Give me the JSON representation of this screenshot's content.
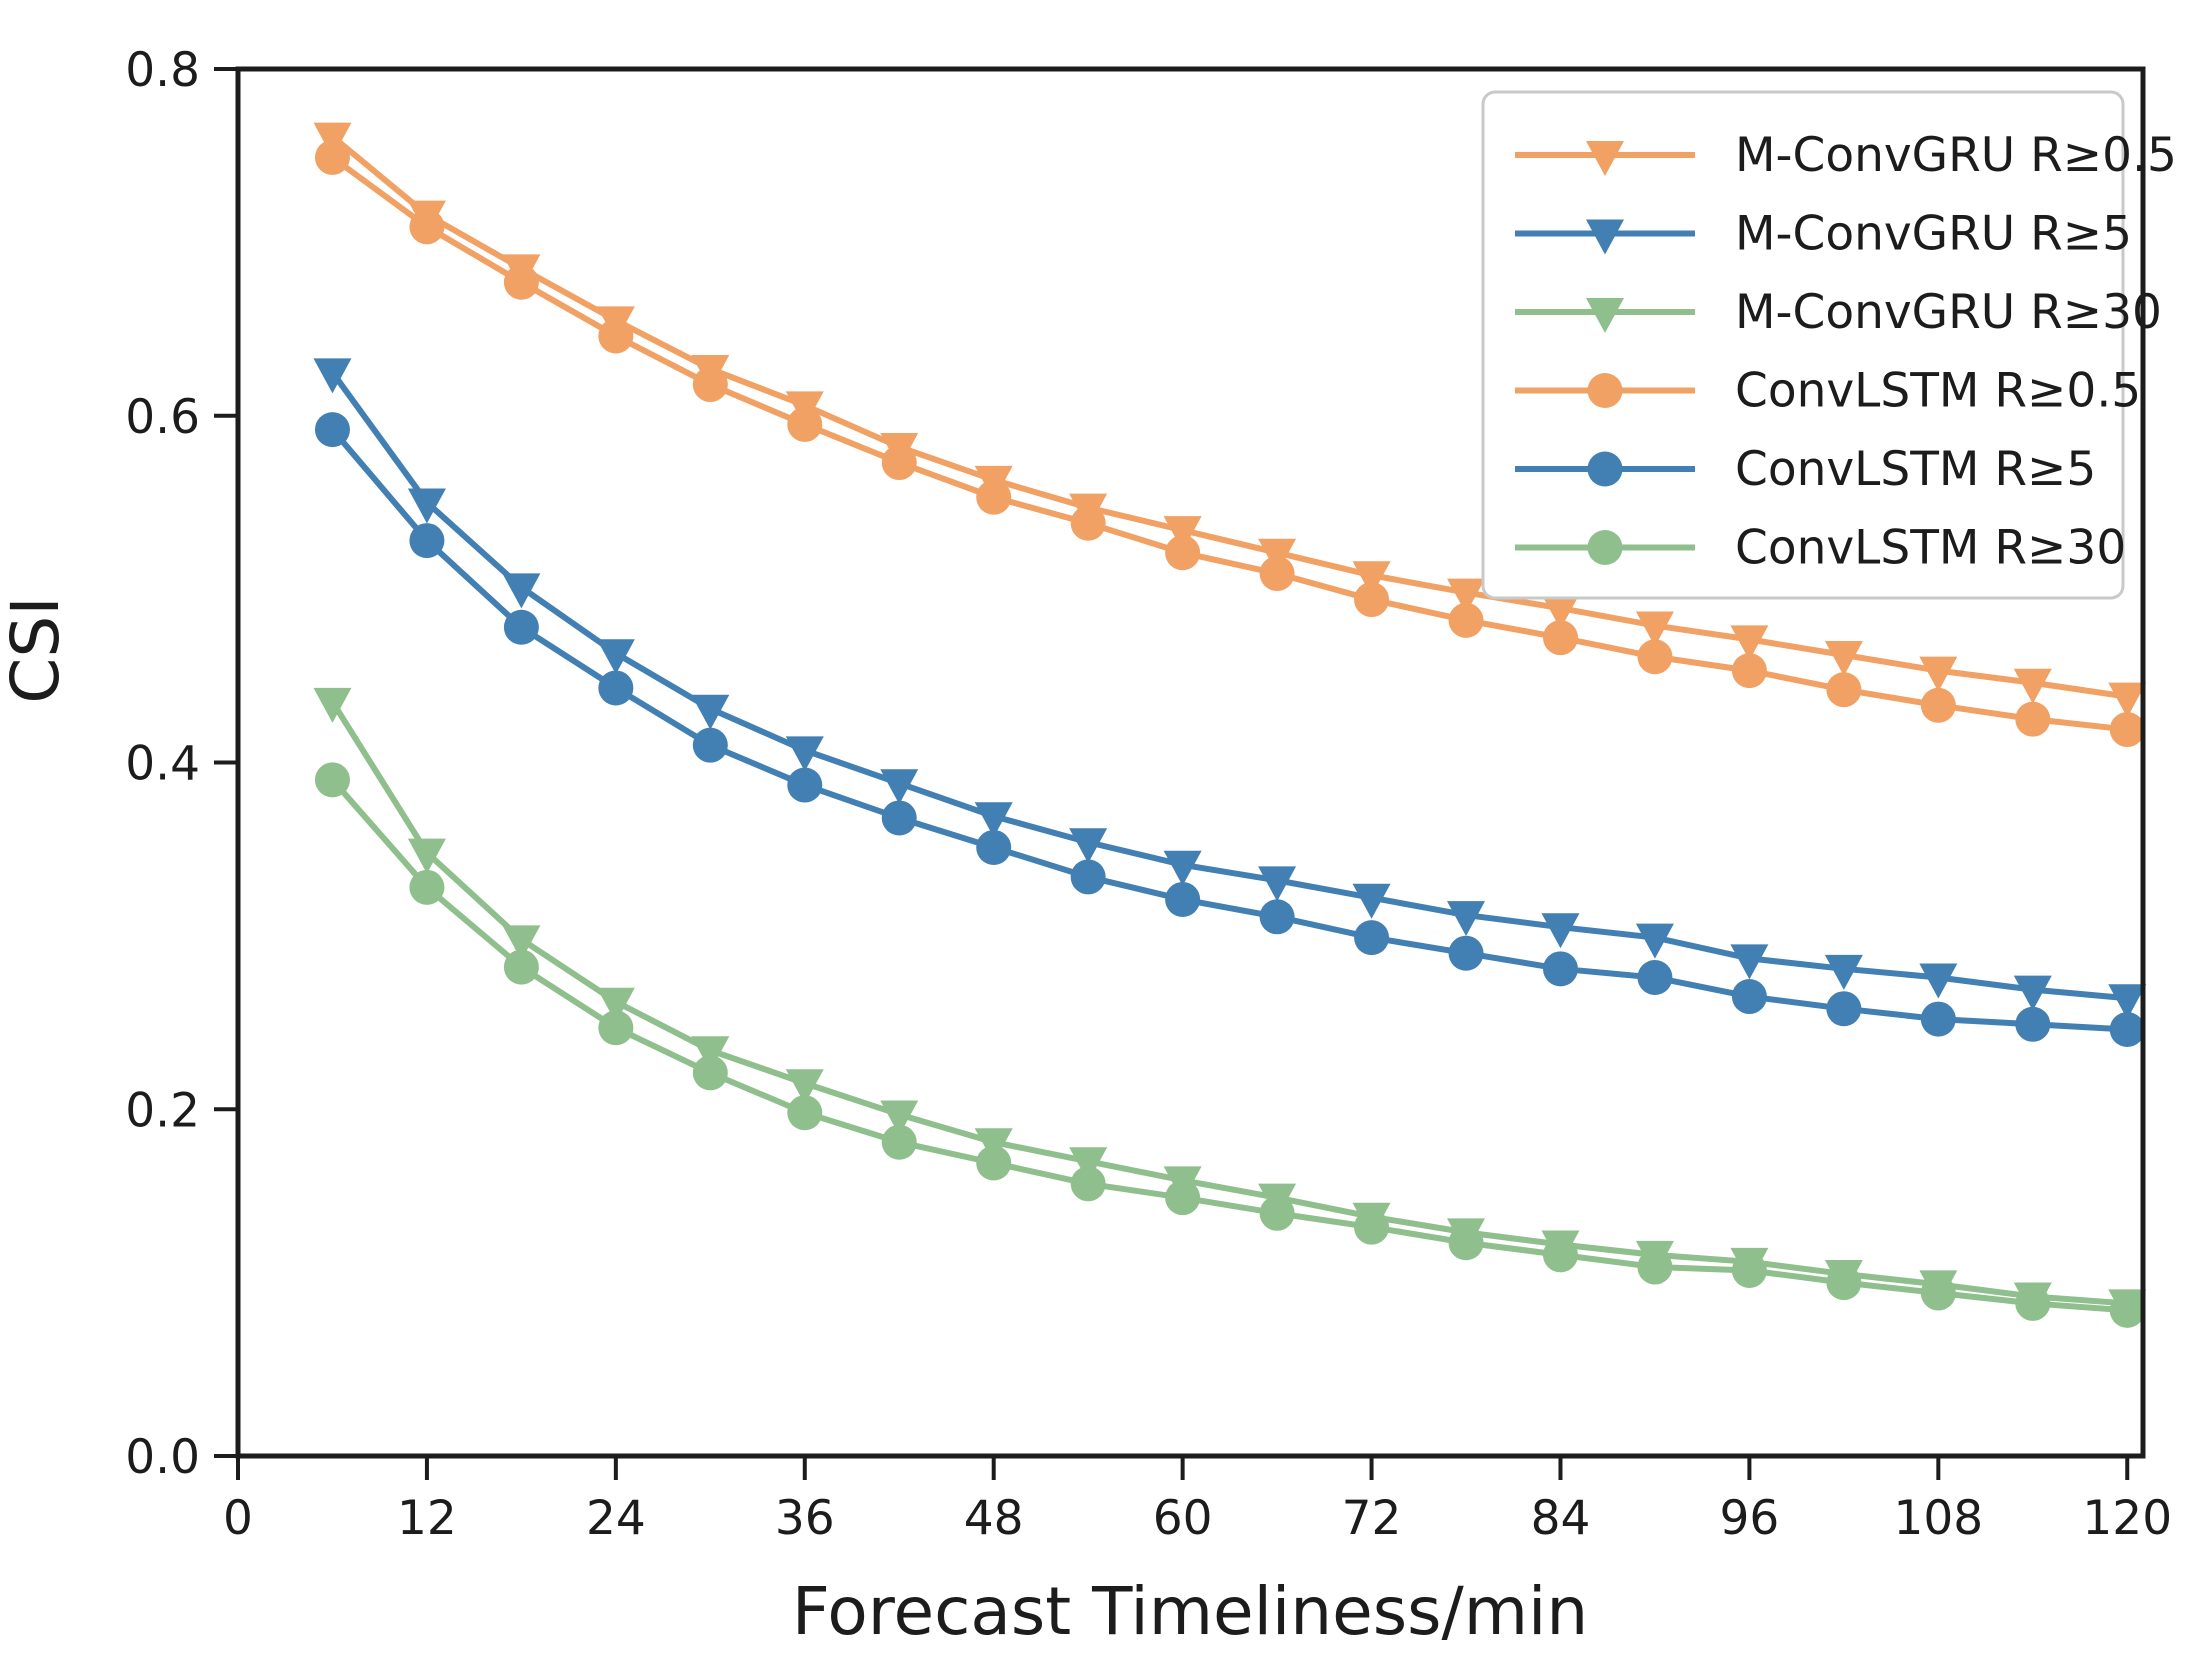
{
  "chart_data": {
    "type": "line",
    "title": "",
    "xlabel": "Forecast Timeliness/min",
    "ylabel": "CSI",
    "xlim": [
      0,
      121
    ],
    "ylim": [
      0.0,
      0.8
    ],
    "x_ticks": [
      0,
      12,
      24,
      36,
      48,
      60,
      72,
      84,
      96,
      108,
      120
    ],
    "y_ticks": [
      0.0,
      0.2,
      0.4,
      0.6,
      0.8
    ],
    "grid": false,
    "legend_position": "upper right",
    "x": [
      6,
      12,
      18,
      24,
      30,
      36,
      42,
      48,
      54,
      60,
      66,
      72,
      78,
      84,
      90,
      96,
      102,
      108,
      114,
      120
    ],
    "series": [
      {
        "name": "M-ConvGRU R≥0.5",
        "marker": "triangle-down",
        "color": "#f0a163",
        "values": [
          0.761,
          0.716,
          0.685,
          0.655,
          0.627,
          0.606,
          0.582,
          0.563,
          0.547,
          0.534,
          0.521,
          0.508,
          0.498,
          0.489,
          0.479,
          0.471,
          0.462,
          0.453,
          0.446,
          0.438
        ]
      },
      {
        "name": "M-ConvGRU R≥5",
        "marker": "triangle-down",
        "color": "#427fb2",
        "values": [
          0.625,
          0.55,
          0.501,
          0.463,
          0.431,
          0.407,
          0.388,
          0.369,
          0.354,
          0.341,
          0.332,
          0.322,
          0.312,
          0.305,
          0.299,
          0.287,
          0.281,
          0.276,
          0.269,
          0.264
        ]
      },
      {
        "name": "M-ConvGRU R≥30",
        "marker": "triangle-down",
        "color": "#8fbf8d",
        "values": [
          0.435,
          0.348,
          0.298,
          0.262,
          0.234,
          0.215,
          0.197,
          0.181,
          0.17,
          0.159,
          0.149,
          0.138,
          0.129,
          0.122,
          0.116,
          0.112,
          0.105,
          0.099,
          0.092,
          0.088
        ]
      },
      {
        "name": "ConvLSTM R≥0.5",
        "marker": "circle",
        "color": "#f0a163",
        "values": [
          0.749,
          0.709,
          0.677,
          0.646,
          0.618,
          0.595,
          0.573,
          0.553,
          0.538,
          0.521,
          0.509,
          0.494,
          0.482,
          0.472,
          0.461,
          0.453,
          0.442,
          0.433,
          0.425,
          0.419
        ]
      },
      {
        "name": "ConvLSTM R≥5",
        "marker": "circle",
        "color": "#427fb2",
        "values": [
          0.592,
          0.528,
          0.478,
          0.443,
          0.41,
          0.387,
          0.368,
          0.351,
          0.334,
          0.321,
          0.311,
          0.299,
          0.29,
          0.281,
          0.276,
          0.265,
          0.258,
          0.252,
          0.249,
          0.246
        ]
      },
      {
        "name": "ConvLSTM R≥30",
        "marker": "circle",
        "color": "#8fbf8d",
        "values": [
          0.39,
          0.328,
          0.282,
          0.247,
          0.221,
          0.198,
          0.181,
          0.169,
          0.157,
          0.149,
          0.14,
          0.132,
          0.123,
          0.116,
          0.109,
          0.107,
          0.1,
          0.094,
          0.088,
          0.084
        ]
      }
    ]
  }
}
